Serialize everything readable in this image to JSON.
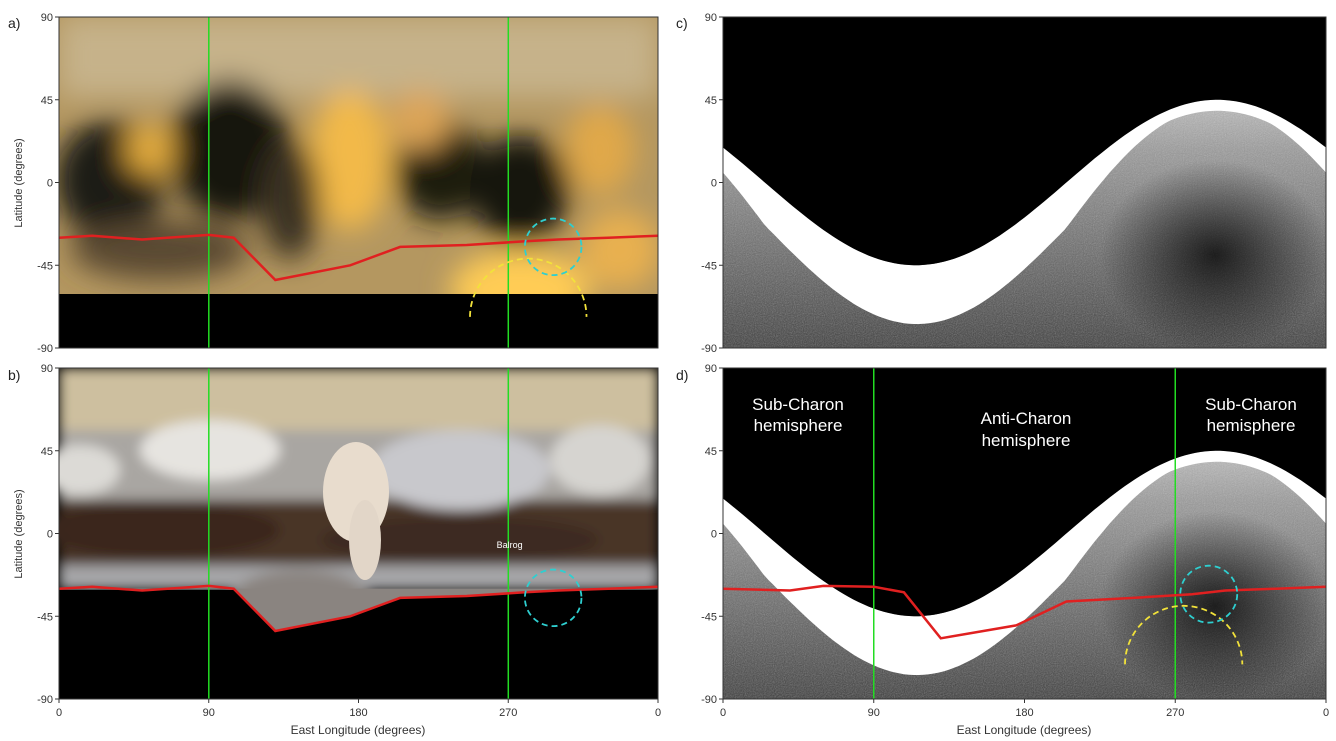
{
  "chart_data": [
    {
      "panel": "a)",
      "type": "heatmap",
      "description_source": "blurred colour albedo map",
      "xlabel": "",
      "ylabel": "Latitude (degrees)",
      "xlim": [
        0,
        360
      ],
      "ylim": [
        -90,
        90
      ],
      "yticks": [
        "-90",
        "-45",
        "0",
        "45",
        "90"
      ],
      "xticks": [],
      "colors": {
        "background": "#c9a45a",
        "shadow": "#000000"
      },
      "markers": {
        "vertical_lines_lon": [
          90,
          270
        ],
        "line_color": "#22dd22",
        "cyan_circle": {
          "lon": 297,
          "lat": -35,
          "radius_deg": 17,
          "color": "#2ecfd0"
        },
        "yellow_arc": {
          "lon": 282,
          "lat": -62,
          "radius_deg": 35,
          "color": "#f2e23a"
        }
      },
      "series": [
        {
          "name": "",
          "color": "#e02020",
          "x": [
            0,
            20,
            50,
            90,
            105,
            130,
            175,
            205,
            245,
            280,
            300,
            330,
            360
          ],
          "y": [
            -30,
            -29,
            -31,
            -28.5,
            -30,
            -53,
            -45,
            -35,
            -34,
            -32,
            -31,
            -30,
            -29
          ]
        }
      ]
    },
    {
      "panel": "b)",
      "type": "heatmap",
      "description_source": "surface colour mosaic",
      "xlabel": "East Longitude (degrees)",
      "ylabel": "Latitude (degrees)",
      "xlim": [
        0,
        360
      ],
      "ylim": [
        -90,
        90
      ],
      "yticks": [
        "-90",
        "-45",
        "0",
        "45",
        "90"
      ],
      "xticks": [
        "0",
        "90",
        "180",
        "270",
        "0"
      ],
      "annotations": [
        {
          "text": "Balrog",
          "lon": 269,
          "lat": -8
        }
      ],
      "markers": {
        "vertical_lines_lon": [
          90,
          270
        ],
        "cyan_circle": {
          "lon": 297,
          "lat": -35,
          "radius_deg": 17,
          "color": "#2ecfd0"
        }
      },
      "series": [
        {
          "name": "",
          "color": "#e02020",
          "x": [
            0,
            20,
            50,
            90,
            105,
            130,
            175,
            205,
            245,
            280,
            300,
            330,
            360
          ],
          "y": [
            -30,
            -29,
            -31,
            -28.5,
            -30,
            -53,
            -45,
            -35,
            -34,
            -32,
            -31,
            -30,
            -29
          ]
        }
      ]
    },
    {
      "panel": "c)",
      "type": "heatmap",
      "description_source": "grayscale radar-like map",
      "xlabel": "",
      "ylabel": "",
      "xlim": [
        0,
        360
      ],
      "ylim": [
        -90,
        90
      ],
      "yticks": [
        "-90",
        "-45",
        "0",
        "45",
        "90"
      ],
      "xticks": [],
      "sine_boundary": {
        "mean_lat": 0,
        "amplitude": 45,
        "peak_lon": 295
      }
    },
    {
      "panel": "d)",
      "type": "heatmap",
      "xlabel": "East Longitude (degrees)",
      "ylabel": "",
      "xlim": [
        0,
        360
      ],
      "ylim": [
        -90,
        90
      ],
      "yticks": [
        "-90",
        "-45",
        "0",
        "45",
        "90"
      ],
      "xticks": [
        "0",
        "90",
        "180",
        "270",
        "0"
      ],
      "labels": {
        "sub_left_1": "Sub-Charon",
        "sub_left_2": "hemisphere",
        "anti_1": "Anti-Charon",
        "anti_2": "hemisphere",
        "sub_right_1": "Sub-Charon",
        "sub_right_2": "hemisphere"
      },
      "markers": {
        "vertical_lines_lon": [
          90,
          270
        ],
        "cyan_circle": {
          "lon": 290,
          "lat": -33,
          "radius_deg": 17,
          "color": "#2ecfd0"
        },
        "yellow_arc": {
          "lon": 275,
          "lat": -60,
          "radius_deg": 35,
          "color": "#f2e23a"
        }
      },
      "series": [
        {
          "name": "",
          "color": "#e02020",
          "x": [
            0,
            40,
            60,
            90,
            108,
            130,
            175,
            205,
            245,
            280,
            300,
            330,
            360
          ],
          "y": [
            -30,
            -31,
            -28.5,
            -29,
            -32,
            -57,
            -50,
            -37,
            -35,
            -33,
            -31,
            -30,
            -29
          ]
        }
      ]
    }
  ]
}
